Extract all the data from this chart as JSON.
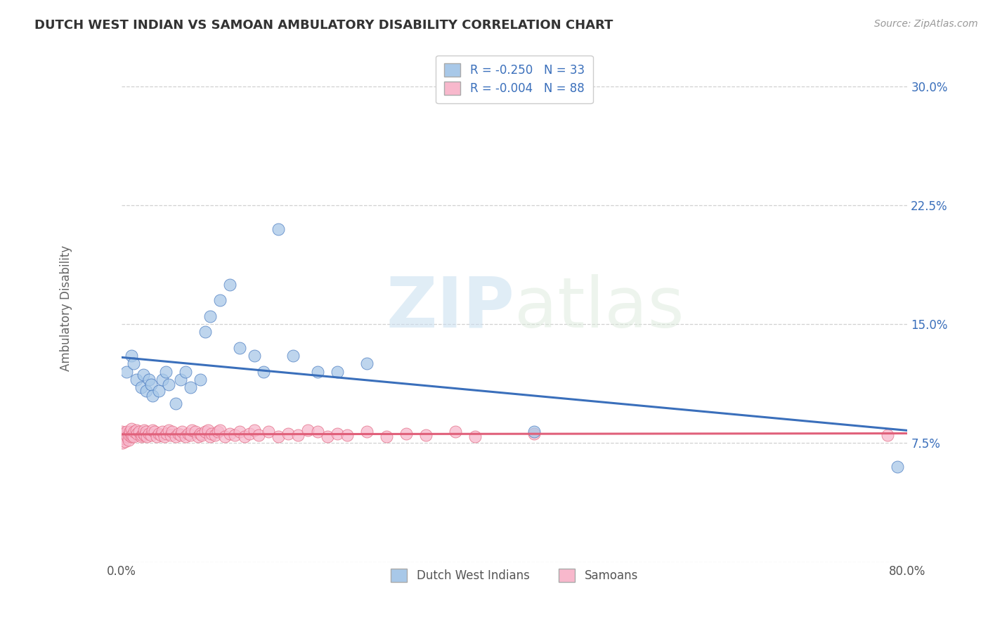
{
  "title": "DUTCH WEST INDIAN VS SAMOAN AMBULATORY DISABILITY CORRELATION CHART",
  "source_text": "Source: ZipAtlas.com",
  "ylabel": "Ambulatory Disability",
  "legend_label1": "Dutch West Indians",
  "legend_label2": "Samoans",
  "R1": -0.25,
  "N1": 33,
  "R2": -0.004,
  "N2": 88,
  "xlim": [
    0.0,
    0.8
  ],
  "ylim": [
    0.0,
    0.32
  ],
  "xticks": [
    0.0,
    0.1,
    0.2,
    0.3,
    0.4,
    0.5,
    0.6,
    0.7,
    0.8
  ],
  "yticks": [
    0.0,
    0.075,
    0.15,
    0.225,
    0.3
  ],
  "ytick_labels": [
    "",
    "7.5%",
    "15.0%",
    "22.5%",
    "30.0%"
  ],
  "xtick_labels": [
    "0.0%",
    "",
    "",
    "",
    "",
    "",
    "",
    "",
    "80.0%"
  ],
  "color1": "#a8c8e8",
  "color2": "#f8b8cc",
  "line_color1": "#3a6fbb",
  "line_color2": "#e0607a",
  "watermark_zip": "ZIP",
  "watermark_atlas": "atlas",
  "background_color": "#ffffff",
  "dutch_x": [
    0.005,
    0.01,
    0.012,
    0.015,
    0.02,
    0.022,
    0.025,
    0.028,
    0.03,
    0.032,
    0.038,
    0.042,
    0.045,
    0.048,
    0.055,
    0.06,
    0.065,
    0.07,
    0.08,
    0.085,
    0.09,
    0.1,
    0.11,
    0.12,
    0.135,
    0.145,
    0.16,
    0.175,
    0.2,
    0.22,
    0.25,
    0.42,
    0.79
  ],
  "dutch_y": [
    0.12,
    0.13,
    0.125,
    0.115,
    0.11,
    0.118,
    0.108,
    0.115,
    0.112,
    0.105,
    0.108,
    0.115,
    0.12,
    0.112,
    0.1,
    0.115,
    0.12,
    0.11,
    0.115,
    0.145,
    0.155,
    0.165,
    0.175,
    0.135,
    0.13,
    0.12,
    0.21,
    0.13,
    0.12,
    0.12,
    0.125,
    0.082,
    0.06
  ],
  "samoan_x": [
    0.0,
    0.0,
    0.0,
    0.0,
    0.0,
    0.0,
    0.001,
    0.002,
    0.003,
    0.004,
    0.005,
    0.005,
    0.006,
    0.007,
    0.008,
    0.009,
    0.01,
    0.01,
    0.011,
    0.012,
    0.013,
    0.015,
    0.016,
    0.018,
    0.02,
    0.021,
    0.022,
    0.023,
    0.024,
    0.025,
    0.026,
    0.028,
    0.03,
    0.032,
    0.034,
    0.036,
    0.038,
    0.04,
    0.042,
    0.044,
    0.046,
    0.048,
    0.05,
    0.052,
    0.055,
    0.058,
    0.06,
    0.062,
    0.065,
    0.068,
    0.07,
    0.072,
    0.075,
    0.078,
    0.08,
    0.082,
    0.085,
    0.088,
    0.09,
    0.092,
    0.095,
    0.098,
    0.1,
    0.105,
    0.11,
    0.115,
    0.12,
    0.125,
    0.13,
    0.135,
    0.14,
    0.15,
    0.16,
    0.17,
    0.18,
    0.19,
    0.2,
    0.21,
    0.22,
    0.23,
    0.25,
    0.27,
    0.29,
    0.31,
    0.34,
    0.36,
    0.42,
    0.78
  ],
  "samoan_y": [
    0.08,
    0.082,
    0.078,
    0.08,
    0.079,
    0.081,
    0.075,
    0.08,
    0.078,
    0.076,
    0.08,
    0.082,
    0.079,
    0.077,
    0.08,
    0.082,
    0.079,
    0.084,
    0.08,
    0.079,
    0.082,
    0.083,
    0.081,
    0.082,
    0.079,
    0.08,
    0.081,
    0.083,
    0.08,
    0.082,
    0.079,
    0.081,
    0.08,
    0.083,
    0.082,
    0.079,
    0.081,
    0.08,
    0.082,
    0.079,
    0.081,
    0.083,
    0.08,
    0.082,
    0.079,
    0.081,
    0.08,
    0.082,
    0.079,
    0.081,
    0.08,
    0.083,
    0.082,
    0.079,
    0.081,
    0.08,
    0.082,
    0.083,
    0.079,
    0.081,
    0.08,
    0.082,
    0.083,
    0.079,
    0.081,
    0.08,
    0.082,
    0.079,
    0.081,
    0.083,
    0.08,
    0.082,
    0.079,
    0.081,
    0.08,
    0.083,
    0.082,
    0.079,
    0.081,
    0.08,
    0.082,
    0.079,
    0.081,
    0.08,
    0.082,
    0.079,
    0.081,
    0.08
  ]
}
